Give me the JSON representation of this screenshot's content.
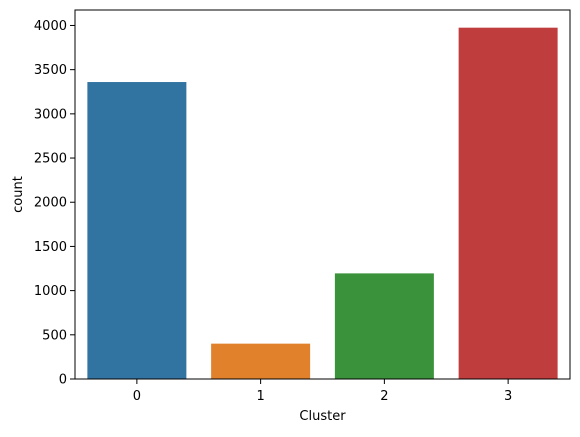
{
  "chart_data": {
    "type": "bar",
    "title": "",
    "xlabel": "Cluster",
    "ylabel": "count",
    "categories": [
      "0",
      "1",
      "2",
      "3"
    ],
    "values": [
      3360,
      400,
      1195,
      3975
    ],
    "colors": [
      "#3274a1",
      "#e1812c",
      "#3a923a",
      "#c03d3e"
    ],
    "ylim": [
      0,
      4175
    ],
    "yticks": [
      0,
      500,
      1000,
      1500,
      2000,
      2500,
      3000,
      3500,
      4000
    ],
    "grid": false,
    "legend": "none"
  }
}
